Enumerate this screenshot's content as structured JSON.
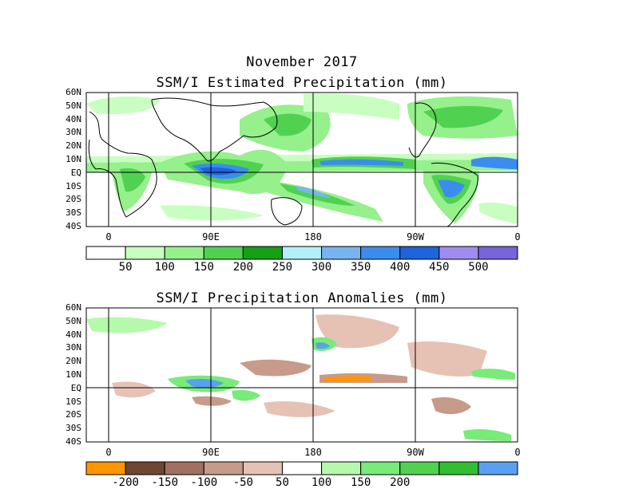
{
  "header": {
    "main_title": "November 2017",
    "panel1_title": "SSM/I Estimated Precipitation (mm)",
    "panel2_title": "SSM/I Precipitation Anomalies (mm)"
  },
  "map": {
    "lat_labels": [
      "60N",
      "50N",
      "40N",
      "30N",
      "20N",
      "10N",
      "EQ",
      "10S",
      "20S",
      "30S",
      "40S"
    ],
    "lon_labels": [
      "0",
      "90E",
      "180",
      "90W",
      "0"
    ]
  },
  "colorbar_precip": {
    "colors": [
      "#ffffff",
      "#c8ffc0",
      "#96f08c",
      "#50d250",
      "#14a014",
      "#b4f0fa",
      "#78b4f0",
      "#3c8cf0",
      "#1e64dc",
      "#a08cf0",
      "#7864dc"
    ],
    "labels": [
      "50",
      "100",
      "150",
      "200",
      "250",
      "300",
      "350",
      "400",
      "450",
      "500"
    ]
  },
  "colorbar_anom": {
    "colors": [
      "#ff9600",
      "#6e4632",
      "#a07060",
      "#c89a8a",
      "#e6c2b4",
      "#ffffff",
      "#b4faaa",
      "#78eb78",
      "#50d250",
      "#32be32",
      "#5aa0f0"
    ],
    "labels": [
      "-200",
      "-150",
      "-100",
      "-50",
      "50",
      "100",
      "150",
      "200"
    ]
  }
}
